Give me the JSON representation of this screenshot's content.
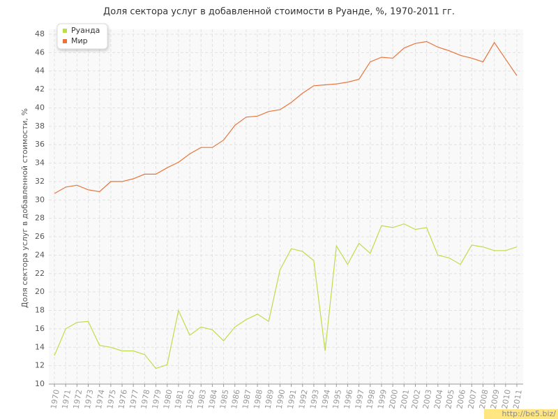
{
  "chart_data": {
    "type": "line",
    "title": "Доля сектора услуг в добавленной стоимости в Руанде, %, 1970-2011 гг.",
    "y_label": "Доля сектора услуг в добавленной стоимости, %",
    "watermark": "http://be5.biz/",
    "categories": [
      "1970",
      "1971",
      "1972",
      "1973",
      "1974",
      "1975",
      "1976",
      "1977",
      "1978",
      "1979",
      "1980",
      "1981",
      "1982",
      "1983",
      "1984",
      "1985",
      "1986",
      "1987",
      "1988",
      "1989",
      "1990",
      "1991",
      "1992",
      "1993",
      "1994",
      "1995",
      "1996",
      "1997",
      "1998",
      "1999",
      "2000",
      "2001",
      "2002",
      "2003",
      "2004",
      "2005",
      "2006",
      "2007",
      "2008",
      "2009",
      "2010",
      "2011"
    ],
    "series": [
      {
        "name": "Руанда",
        "color": "#bfdc4a",
        "values": [
          13.1,
          16.0,
          16.7,
          16.8,
          14.2,
          14.0,
          13.6,
          13.6,
          13.2,
          11.7,
          12.1,
          18.0,
          15.3,
          16.2,
          15.9,
          14.7,
          16.2,
          17.0,
          17.6,
          16.8,
          22.4,
          24.7,
          24.4,
          23.4,
          13.6,
          25.0,
          23.0,
          25.3,
          24.2,
          27.2,
          27.0,
          27.4,
          26.8,
          27.0,
          24.0,
          23.7,
          23.0,
          25.1,
          24.9,
          24.5,
          24.5,
          24.9
        ]
      },
      {
        "name": "Мир",
        "color": "#e8743b",
        "values": [
          30.7,
          31.4,
          31.6,
          31.1,
          30.9,
          32.0,
          32.0,
          32.3,
          32.8,
          32.8,
          33.5,
          34.1,
          35.0,
          35.7,
          35.7,
          36.5,
          38.1,
          39.0,
          39.1,
          39.6,
          39.8,
          40.6,
          41.6,
          42.4,
          42.5,
          42.6,
          42.8,
          43.1,
          45.0,
          45.5,
          45.4,
          46.5,
          47.0,
          47.2,
          46.6,
          46.2,
          45.7,
          45.4,
          45.0,
          47.1,
          45.3,
          43.5
        ]
      }
    ],
    "ylim": [
      10,
      48
    ],
    "yticks": [
      10,
      12,
      14,
      16,
      18,
      20,
      22,
      24,
      26,
      28,
      30,
      32,
      34,
      36,
      38,
      40,
      42,
      44,
      46,
      48
    ],
    "grid": true,
    "legend": "top-left"
  }
}
